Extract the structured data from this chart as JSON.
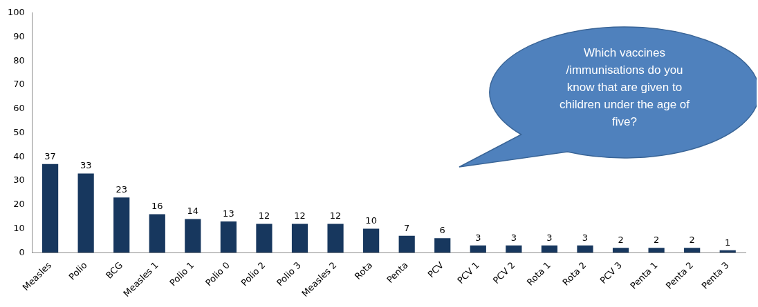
{
  "chart_data": {
    "type": "bar",
    "categories": [
      "Measles",
      "Polio",
      "BCG",
      "Measles 1",
      "Polio 1",
      "Polio 0",
      "Polio 2",
      "Polio 3",
      "Measles 2",
      "Rota",
      "Penta",
      "PCV",
      "PCV 1",
      "PCV 2",
      "Rota 1",
      "Rota 2",
      "PCV 3",
      "Penta 1",
      "Penta 2",
      "Penta 3"
    ],
    "values": [
      37,
      33,
      23,
      16,
      14,
      13,
      12,
      12,
      12,
      10,
      7,
      6,
      3,
      3,
      3,
      3,
      2,
      2,
      2,
      1
    ],
    "color": "#17375e",
    "ylim": [
      0,
      100
    ],
    "yticks": [
      0,
      10,
      20,
      30,
      40,
      50,
      60,
      70,
      80,
      90,
      100
    ],
    "data_labels": true,
    "annotations": [
      "Which vaccines /immunisations do you know that are given to children under the age of five?"
    ]
  }
}
